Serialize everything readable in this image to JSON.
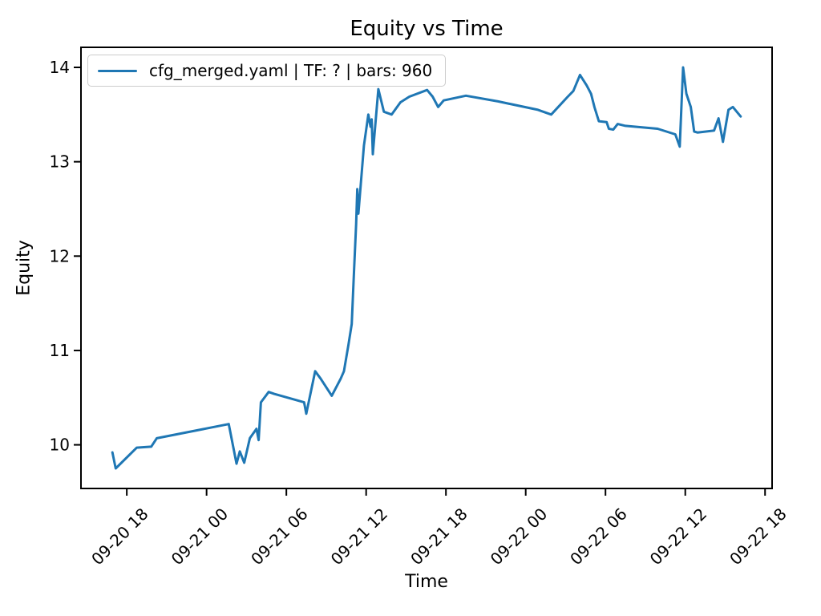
{
  "window": {
    "background": "#ffffff"
  },
  "chart_data": {
    "type": "line",
    "title": "Equity vs Time",
    "xlabel": "Time",
    "ylabel": "Equity",
    "grid": false,
    "legend_position": "upper left",
    "x_margin_frac": 0.05,
    "y_margin_frac": 0.05,
    "colors": {
      "line": "#1f77b4",
      "spines": "#000000",
      "tick_text": "#000000",
      "legend_border": "#cccccc"
    },
    "x_ticks": [
      {
        "label": "09-20 18",
        "t": "09-20 18:00"
      },
      {
        "label": "09-21 00",
        "t": "09-21 00:00"
      },
      {
        "label": "09-21 06",
        "t": "09-21 06:00"
      },
      {
        "label": "09-21 12",
        "t": "09-21 12:00"
      },
      {
        "label": "09-21 18",
        "t": "09-21 18:00"
      },
      {
        "label": "09-22 00",
        "t": "09-22 00:00"
      },
      {
        "label": "09-22 06",
        "t": "09-22 06:00"
      },
      {
        "label": "09-22 12",
        "t": "09-22 12:00"
      },
      {
        "label": "09-22 18",
        "t": "09-22 18:00"
      }
    ],
    "y_ticks": [
      10,
      11,
      12,
      13,
      14
    ],
    "series": [
      {
        "name": "cfg_merged.yaml | TF: ? | bars: 960",
        "color": "#1f77b4",
        "points": [
          [
            "09-20 16:55",
            9.92
          ],
          [
            "09-20 17:10",
            9.75
          ],
          [
            "09-20 18:45",
            9.97
          ],
          [
            "09-20 19:50",
            9.98
          ],
          [
            "09-20 20:15",
            10.07
          ],
          [
            "09-21 01:40",
            10.22
          ],
          [
            "09-21 02:15",
            9.8
          ],
          [
            "09-21 02:30",
            9.93
          ],
          [
            "09-21 02:50",
            9.81
          ],
          [
            "09-21 03:15",
            10.07
          ],
          [
            "09-21 03:45",
            10.17
          ],
          [
            "09-21 03:55",
            10.05
          ],
          [
            "09-21 04:05",
            10.45
          ],
          [
            "09-21 04:40",
            10.56
          ],
          [
            "09-21 05:05",
            10.54
          ],
          [
            "09-21 07:20",
            10.45
          ],
          [
            "09-21 07:30",
            10.33
          ],
          [
            "09-21 08:10",
            10.78
          ],
          [
            "09-21 08:35",
            10.7
          ],
          [
            "09-21 09:25",
            10.52
          ],
          [
            "09-21 10:05",
            10.7
          ],
          [
            "09-21 10:20",
            10.78
          ],
          [
            "09-21 10:40",
            11.06
          ],
          [
            "09-21 10:55",
            11.28
          ],
          [
            "09-21 11:05",
            11.83
          ],
          [
            "09-21 11:15",
            12.34
          ],
          [
            "09-21 11:20",
            12.71
          ],
          [
            "09-21 11:25",
            12.45
          ],
          [
            "09-21 11:50",
            13.17
          ],
          [
            "09-21 12:10",
            13.5
          ],
          [
            "09-21 12:20",
            13.37
          ],
          [
            "09-21 12:25",
            13.45
          ],
          [
            "09-21 12:30",
            13.08
          ],
          [
            "09-21 12:55",
            13.77
          ],
          [
            "09-21 13:20",
            13.53
          ],
          [
            "09-21 13:55",
            13.5
          ],
          [
            "09-21 14:35",
            13.63
          ],
          [
            "09-21 15:15",
            13.69
          ],
          [
            "09-21 16:35",
            13.76
          ],
          [
            "09-21 17:00",
            13.69
          ],
          [
            "09-21 17:25",
            13.58
          ],
          [
            "09-21 17:50",
            13.65
          ],
          [
            "09-21 19:30",
            13.7
          ],
          [
            "09-21 21:55",
            13.64
          ],
          [
            "09-22 00:55",
            13.55
          ],
          [
            "09-22 01:55",
            13.5
          ],
          [
            "09-22 03:10",
            13.69
          ],
          [
            "09-22 03:35",
            13.75
          ],
          [
            "09-22 04:05",
            13.92
          ],
          [
            "09-22 04:35",
            13.81
          ],
          [
            "09-22 04:55",
            13.72
          ],
          [
            "09-22 05:10",
            13.58
          ],
          [
            "09-22 05:30",
            13.43
          ],
          [
            "09-22 06:05",
            13.42
          ],
          [
            "09-22 06:15",
            13.35
          ],
          [
            "09-22 06:35",
            13.34
          ],
          [
            "09-22 06:55",
            13.4
          ],
          [
            "09-22 07:30",
            13.38
          ],
          [
            "09-22 09:55",
            13.35
          ],
          [
            "09-22 11:15",
            13.29
          ],
          [
            "09-22 11:35",
            13.16
          ],
          [
            "09-22 11:50",
            14.0
          ],
          [
            "09-22 12:05",
            13.72
          ],
          [
            "09-22 12:25",
            13.58
          ],
          [
            "09-22 12:40",
            13.32
          ],
          [
            "09-22 12:55",
            13.31
          ],
          [
            "09-22 14:10",
            13.33
          ],
          [
            "09-22 14:30",
            13.46
          ],
          [
            "09-22 14:50",
            13.21
          ],
          [
            "09-22 15:15",
            13.55
          ],
          [
            "09-22 15:35",
            13.58
          ],
          [
            "09-22 16:10",
            13.48
          ]
        ]
      }
    ]
  }
}
